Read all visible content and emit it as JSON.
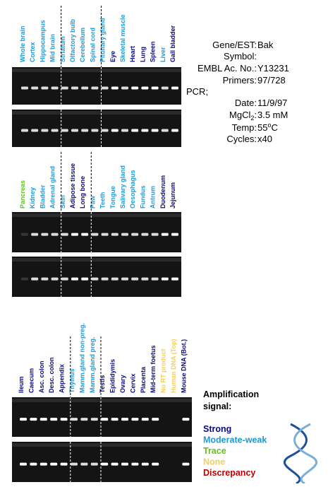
{
  "panels": [
    {
      "lanes": [
        {
          "label": "Whole brain",
          "color": "#1e9ad6"
        },
        {
          "label": "Cortex",
          "color": "#1e9ad6"
        },
        {
          "label": "Hippocampus",
          "color": "#1e9ad6"
        },
        {
          "label": "Mid brain",
          "color": "#1e9ad6"
        },
        {
          "label": "Striatum",
          "color": "#1e9ad6"
        },
        {
          "label": "Olfactory bulb",
          "color": "#1e9ad6"
        },
        {
          "label": "Cerebellum",
          "color": "#1e9ad6"
        },
        {
          "label": "Spinal cord",
          "color": "#1e9ad6"
        },
        {
          "label": "Pituitary gland",
          "color": "#1e9ad6"
        },
        {
          "label": "Eye",
          "color": "#0a0a80"
        },
        {
          "label": "Skeletal muscle",
          "color": "#1e9ad6"
        },
        {
          "label": "Heart",
          "color": "#0a0a80"
        },
        {
          "label": "Lung",
          "color": "#0a0a80"
        },
        {
          "label": "Spleen",
          "color": "#0a0a80"
        },
        {
          "label": "Liver",
          "color": "#1e9ad6"
        },
        {
          "label": "Gall bladder",
          "color": "#0a0a80"
        }
      ]
    },
    {
      "lanes": [
        {
          "label": "Pancreas",
          "color": "#66bb22"
        },
        {
          "label": "Kidney",
          "color": "#1e9ad6"
        },
        {
          "label": "Bladder",
          "color": "#1e9ad6"
        },
        {
          "label": "Adrenal gland",
          "color": "#1e9ad6"
        },
        {
          "label": "Skin",
          "color": "#1e9ad6"
        },
        {
          "label": "Adipose tissue",
          "color": "#0a0a80"
        },
        {
          "label": "Long bone",
          "color": "#0a0a80"
        },
        {
          "label": "Paw",
          "color": "#1e9ad6"
        },
        {
          "label": "Teeth",
          "color": "#1e9ad6"
        },
        {
          "label": "Tongue",
          "color": "#1e9ad6"
        },
        {
          "label": "Salivary gland",
          "color": "#1e9ad6"
        },
        {
          "label": "Oesophagus",
          "color": "#1e9ad6"
        },
        {
          "label": "Fundus",
          "color": "#1e9ad6"
        },
        {
          "label": "Antrum",
          "color": "#1e9ad6"
        },
        {
          "label": "Duodenum",
          "color": "#0a0a80"
        },
        {
          "label": "Jejunum",
          "color": "#0a0a80"
        }
      ]
    },
    {
      "lanes": [
        {
          "label": "Ileum",
          "color": "#0a0a80"
        },
        {
          "label": "Caecum",
          "color": "#0a0a80"
        },
        {
          "label": "Asc. colon",
          "color": "#0a0a80"
        },
        {
          "label": "Desc. colon",
          "color": "#0a0a80"
        },
        {
          "label": "Appendix",
          "color": "#0a0a80"
        },
        {
          "label": "Thymus",
          "color": "#1e9ad6"
        },
        {
          "label": "Mamm.gland non-preg.",
          "color": "#1e9ad6"
        },
        {
          "label": "Mamm.gland preg.",
          "color": "#1e9ad6"
        },
        {
          "label": "Testis",
          "color": "#0a0a80"
        },
        {
          "label": "Epididymis",
          "color": "#0a0a80"
        },
        {
          "label": "Ovary",
          "color": "#0a0a80"
        },
        {
          "label": "Cervix",
          "color": "#0a0a80"
        },
        {
          "label": "Placenta",
          "color": "#0a0a80"
        },
        {
          "label": "Mid-term foetus",
          "color": "#0a0a80"
        },
        {
          "label": "No RT product",
          "color": "#f0d060"
        },
        {
          "label": "Human DNA (Top)",
          "color": "#f0d060"
        },
        {
          "label": "Mouse DNA (Bot.)",
          "color": "#0a0a80"
        }
      ]
    }
  ],
  "info": [
    {
      "label": "Gene/EST:",
      "value": "Bak"
    },
    {
      "label": "Symbol:"
    },
    {
      "label": "EMBL Ac. No.:",
      "value": "Y13231"
    },
    {
      "label": "Primers:",
      "value": "97/728"
    },
    {
      "label": "PCR;"
    },
    {
      "label": "Date:",
      "value": "11/9/97"
    },
    {
      "label": "MgCl",
      "label_sub": "2",
      "label_end": ":",
      "value": "3.5 mM"
    },
    {
      "label": "Temp:",
      "value": "55",
      "value_sup": "o",
      "value_end": "C"
    },
    {
      "label": "Cycles:",
      "value": "x40"
    }
  ],
  "legend": {
    "title": [
      "Amplification",
      "signal:"
    ],
    "items": [
      {
        "label": "Strong",
        "color": "#0a0a80"
      },
      {
        "label": "Moderate-weak",
        "color": "#1e9ad6"
      },
      {
        "label": "Trace",
        "color": "#66bb22"
      },
      {
        "label": "None",
        "color": "#f0d060"
      },
      {
        "label": "Discrepancy",
        "color": "#c00000"
      }
    ]
  }
}
